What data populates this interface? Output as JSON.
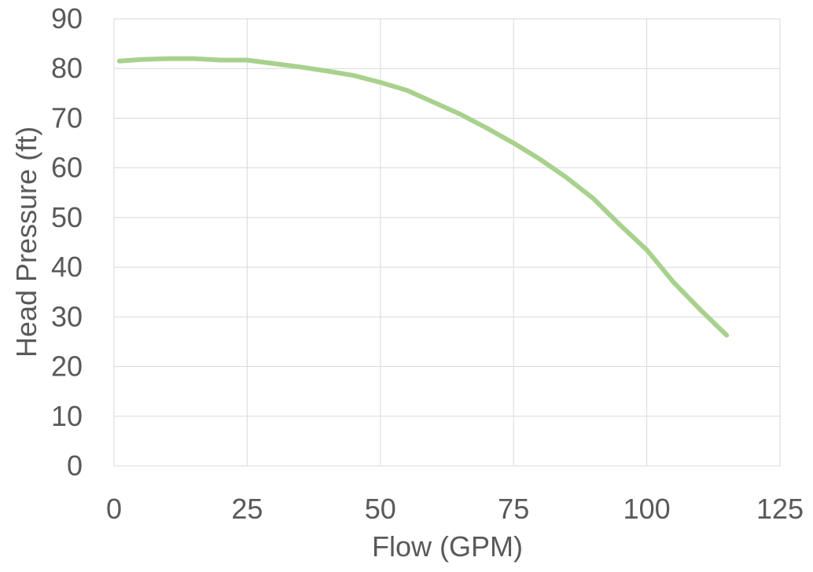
{
  "chart_data": {
    "type": "line",
    "title": "",
    "xlabel": "Flow (GPM)",
    "ylabel": "Head Pressure (ft)",
    "xlim": [
      0,
      125
    ],
    "ylim": [
      0,
      90
    ],
    "x_ticks": [
      0,
      25,
      50,
      75,
      100,
      125
    ],
    "y_ticks": [
      0,
      10,
      20,
      30,
      40,
      50,
      60,
      70,
      80,
      90
    ],
    "grid": true,
    "legend": "none",
    "series": [
      {
        "color": "#a9d18e",
        "x": [
          1,
          5,
          10,
          15,
          20,
          25,
          30,
          35,
          40,
          45,
          50,
          55,
          60,
          65,
          70,
          75,
          80,
          85,
          90,
          95,
          100,
          105,
          110,
          115
        ],
        "y": [
          81.5,
          81.8,
          82.0,
          82.0,
          81.7,
          81.7,
          81.0,
          80.3,
          79.5,
          78.6,
          77.2,
          75.6,
          73.2,
          70.8,
          68.0,
          65.0,
          61.7,
          58.0,
          53.8,
          48.5,
          43.5,
          37.0,
          31.5,
          26.3
        ]
      }
    ]
  }
}
